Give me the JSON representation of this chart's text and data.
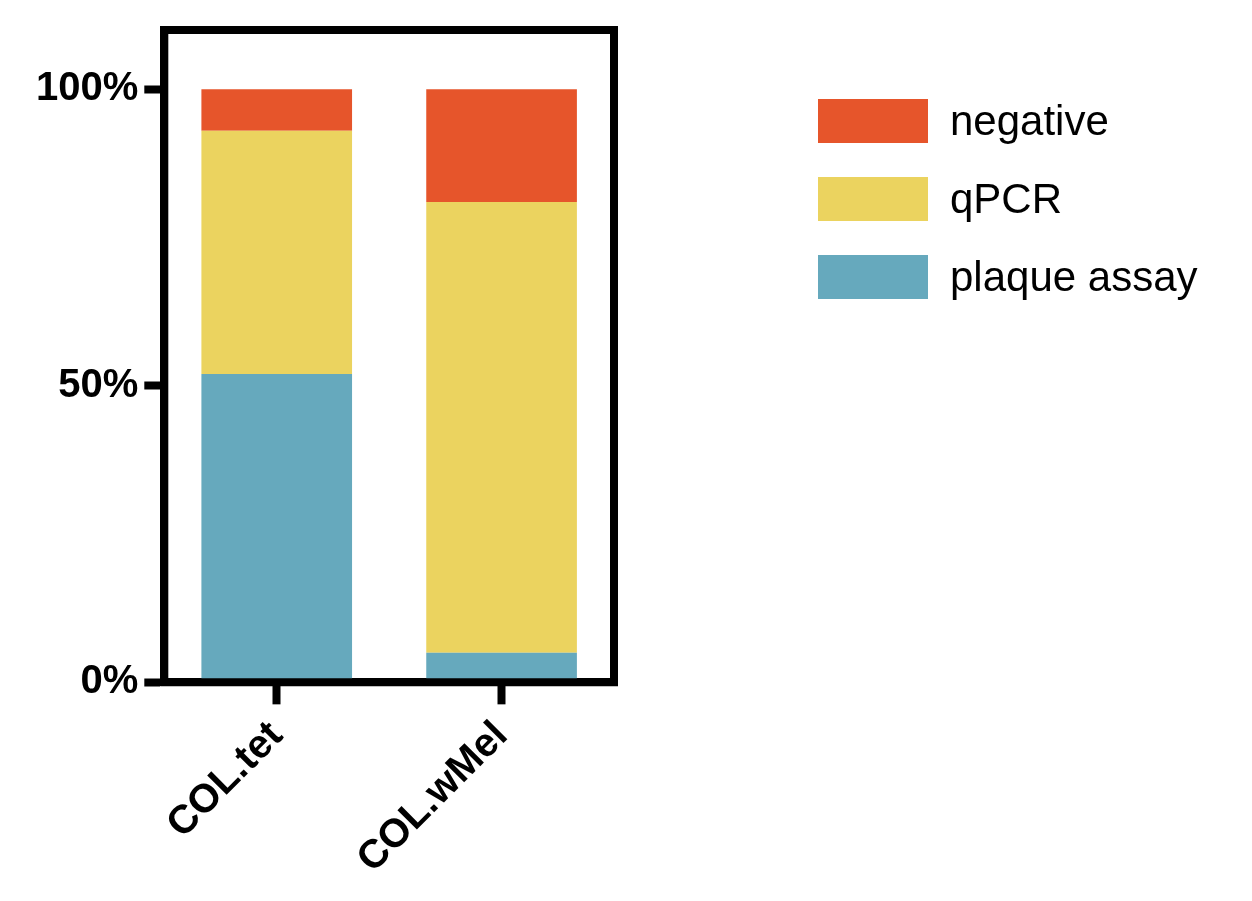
{
  "chart_data": {
    "type": "bar",
    "stacked": true,
    "categories": [
      "COL.tet",
      "COL.wMel"
    ],
    "series": [
      {
        "name": "plaque assay",
        "color": "#66a9bd",
        "values": [
          52,
          5
        ]
      },
      {
        "name": "qPCR",
        "color": "#ebd35f",
        "values": [
          41,
          76
        ]
      },
      {
        "name": "negative",
        "color": "#e6552b",
        "values": [
          7,
          19
        ]
      }
    ],
    "ylim": [
      0,
      110
    ],
    "yticks": [
      {
        "value": 0,
        "label": "0%"
      },
      {
        "value": 50,
        "label": "50%"
      },
      {
        "value": 100,
        "label": "100%"
      }
    ],
    "grid": false,
    "legend": "top right"
  }
}
